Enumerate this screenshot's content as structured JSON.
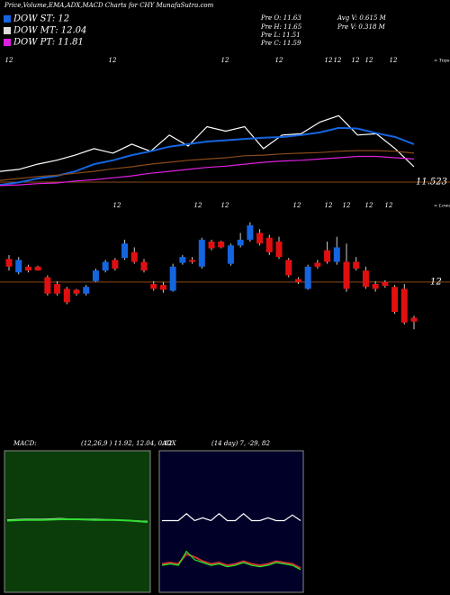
{
  "header": {
    "title": "Price,Volume,EMA,ADX,MACD Charts for CHY MunafaSutra.com"
  },
  "legend": [
    {
      "label": "DOW ST: 12",
      "color": "#1565e0"
    },
    {
      "label": "DOW MT: 12.04",
      "color": "#dddddd"
    },
    {
      "label": "DOW PT: 11.81",
      "color": "#e020e0"
    }
  ],
  "info": [
    "Pre  O: 11.63",
    "Pre  H: 11.65",
    "Pre  L: 11.51",
    "Pre  C: 11.59"
  ],
  "info2": [
    "Avg V: 0.615 M",
    "Pre  V: 0.318  M"
  ],
  "chart_data": [
    {
      "type": "line",
      "name": "ema-panel",
      "ylim": [
        11.34,
        13.5
      ],
      "yticks": [
        11.523
      ],
      "marker_labels": [
        "12",
        "12",
        "12",
        "12",
        "12",
        "12",
        "12",
        "12",
        "12"
      ],
      "edge_label": "< Tops",
      "series": [
        {
          "color": "#ffffff",
          "values": [
            11.69,
            11.72,
            11.8,
            11.86,
            11.94,
            12.04,
            11.97,
            12.11,
            12.0,
            12.25,
            12.08,
            12.38,
            12.31,
            12.38,
            12.04,
            12.25,
            12.27,
            12.45,
            12.55,
            12.25,
            12.27,
            12.04,
            11.76
          ]
        },
        {
          "color": "#1565e0",
          "values": [
            11.48,
            11.52,
            11.58,
            11.62,
            11.69,
            11.8,
            11.86,
            11.94,
            12.0,
            12.07,
            12.11,
            12.15,
            12.17,
            12.19,
            12.21,
            12.22,
            12.25,
            12.29,
            12.36,
            12.35,
            12.28,
            12.22,
            12.11
          ]
        },
        {
          "color": "#8a4a1a",
          "values": [
            11.55,
            11.58,
            11.61,
            11.63,
            11.66,
            11.69,
            11.73,
            11.76,
            11.8,
            11.83,
            11.86,
            11.88,
            11.9,
            11.93,
            11.94,
            11.96,
            11.97,
            11.98,
            12.0,
            12.01,
            12.01,
            12.0,
            11.97
          ]
        },
        {
          "color": "#e020e0",
          "values": [
            11.47,
            11.48,
            11.5,
            11.51,
            11.54,
            11.56,
            11.59,
            11.62,
            11.66,
            11.69,
            11.72,
            11.75,
            11.77,
            11.8,
            11.83,
            11.85,
            11.86,
            11.88,
            11.9,
            11.92,
            11.92,
            11.9,
            11.88
          ]
        }
      ]
    },
    {
      "type": "candlestick",
      "name": "price-panel",
      "ylim": [
        11.4,
        12.8
      ],
      "yticks": [
        12
      ],
      "up_color": "#1565e0",
      "down_color": "#e01010",
      "marker_labels": [
        "12",
        "12",
        "12",
        "12",
        "12",
        "12",
        "12",
        "12"
      ],
      "edge_label": "< Lows",
      "candles": [
        [
          12.24,
          12.28,
          12.12,
          12.16
        ],
        [
          12.1,
          12.26,
          12.08,
          12.23
        ],
        [
          12.16,
          12.18,
          12.1,
          12.12
        ],
        [
          12.16,
          12.17,
          12.12,
          12.12
        ],
        [
          12.05,
          12.07,
          11.86,
          11.88
        ],
        [
          11.98,
          12.01,
          11.86,
          11.88
        ],
        [
          11.93,
          11.95,
          11.77,
          11.79
        ],
        [
          11.92,
          11.93,
          11.86,
          11.88
        ],
        [
          11.88,
          11.97,
          11.86,
          11.95
        ],
        [
          12.01,
          12.14,
          12.0,
          12.12
        ],
        [
          12.12,
          12.23,
          12.1,
          12.21
        ],
        [
          12.23,
          12.25,
          12.12,
          12.14
        ],
        [
          12.25,
          12.44,
          12.23,
          12.4
        ],
        [
          12.31,
          12.36,
          12.19,
          12.21
        ],
        [
          12.21,
          12.24,
          12.1,
          12.12
        ],
        [
          11.98,
          12.01,
          11.91,
          11.93
        ],
        [
          11.97,
          12.0,
          11.89,
          11.92
        ],
        [
          11.91,
          12.19,
          11.9,
          12.16
        ],
        [
          12.2,
          12.28,
          12.18,
          12.26
        ],
        [
          12.23,
          12.26,
          12.19,
          12.21
        ],
        [
          12.16,
          12.46,
          12.14,
          12.44
        ],
        [
          12.42,
          12.44,
          12.33,
          12.35
        ],
        [
          12.42,
          12.43,
          12.35,
          12.36
        ],
        [
          12.19,
          12.4,
          12.17,
          12.38
        ],
        [
          12.38,
          12.51,
          12.36,
          12.44
        ],
        [
          12.44,
          12.62,
          12.42,
          12.59
        ],
        [
          12.51,
          12.55,
          12.38,
          12.4
        ],
        [
          12.46,
          12.49,
          12.28,
          12.31
        ],
        [
          12.42,
          12.47,
          12.24,
          12.26
        ],
        [
          12.23,
          12.25,
          12.05,
          12.07
        ],
        [
          12.03,
          12.05,
          11.98,
          12.0
        ],
        [
          11.93,
          12.18,
          11.92,
          12.16
        ],
        [
          12.2,
          12.23,
          12.14,
          12.16
        ],
        [
          12.33,
          12.42,
          12.19,
          12.21
        ],
        [
          12.21,
          12.47,
          12.18,
          12.36
        ],
        [
          12.21,
          12.4,
          11.9,
          11.93
        ],
        [
          12.21,
          12.26,
          12.12,
          12.14
        ],
        [
          12.12,
          12.16,
          11.93,
          11.95
        ],
        [
          11.98,
          12.01,
          11.9,
          11.93
        ],
        [
          12.0,
          12.02,
          11.94,
          11.96
        ],
        [
          11.95,
          11.97,
          11.67,
          11.69
        ],
        [
          11.93,
          11.98,
          11.56,
          11.58
        ],
        [
          11.63,
          11.65,
          11.51,
          11.59
        ]
      ]
    },
    {
      "type": "line",
      "name": "macd-panel",
      "title": "MACD:",
      "subtitle": "(12,26,9 ) 11.92, 12.04, 0.12",
      "ylim": [
        -1,
        1
      ],
      "series": [
        {
          "color": "#ffffff",
          "values": [
            0.01,
            0.02,
            0.02,
            0.03,
            0.02,
            0.02,
            0.01,
            0.0,
            -0.01
          ]
        },
        {
          "color": "#33dd33",
          "values": [
            0.0,
            0.01,
            0.01,
            0.02,
            0.02,
            0.01,
            0.01,
            0.0,
            -0.02
          ]
        }
      ]
    },
    {
      "type": "line",
      "name": "adx-panel",
      "title": "ADX",
      "subtitle": "(14 day) 7, -29, 82",
      "ylim": [
        0,
        100
      ],
      "series": [
        {
          "color": "#ffffff",
          "values": [
            50,
            50,
            50,
            55,
            50,
            52,
            50,
            55,
            50,
            50,
            55,
            50,
            50,
            52,
            50,
            50,
            54,
            50
          ]
        },
        {
          "color": "#cc3333",
          "values": [
            19,
            20,
            19,
            26,
            24,
            21,
            19,
            20,
            18,
            19,
            21,
            19,
            18,
            19,
            21,
            20,
            19,
            16
          ]
        },
        {
          "color": "#22ee22",
          "values": [
            18,
            19,
            18,
            28,
            22,
            20,
            18,
            19,
            17,
            18,
            20,
            18,
            17,
            18,
            20,
            19,
            18,
            15
          ]
        }
      ]
    }
  ]
}
